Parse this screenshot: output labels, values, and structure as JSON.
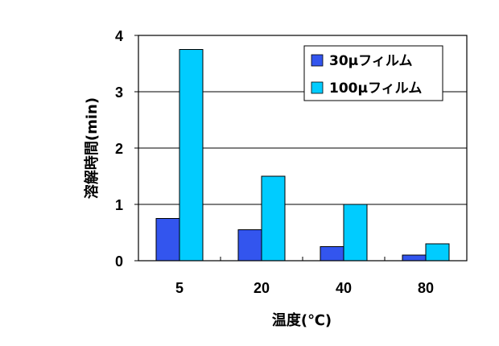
{
  "chart_data": {
    "type": "bar",
    "title": "",
    "xlabel": "温度(℃)",
    "ylabel": "溶解時間(min)",
    "categories": [
      "5",
      "20",
      "40",
      "80"
    ],
    "ylim": [
      0,
      4
    ],
    "yticks": [
      "0",
      "1",
      "2",
      "3",
      "4"
    ],
    "grid": true,
    "legend_position": "top-right",
    "series": [
      {
        "name": "30μフィルム",
        "values": [
          0.75,
          0.55,
          0.25,
          0.1
        ],
        "color": "#3355ee"
      },
      {
        "name": "100μフィルム",
        "values": [
          3.75,
          1.5,
          1.0,
          0.3
        ],
        "color": "#00ccff"
      }
    ]
  }
}
